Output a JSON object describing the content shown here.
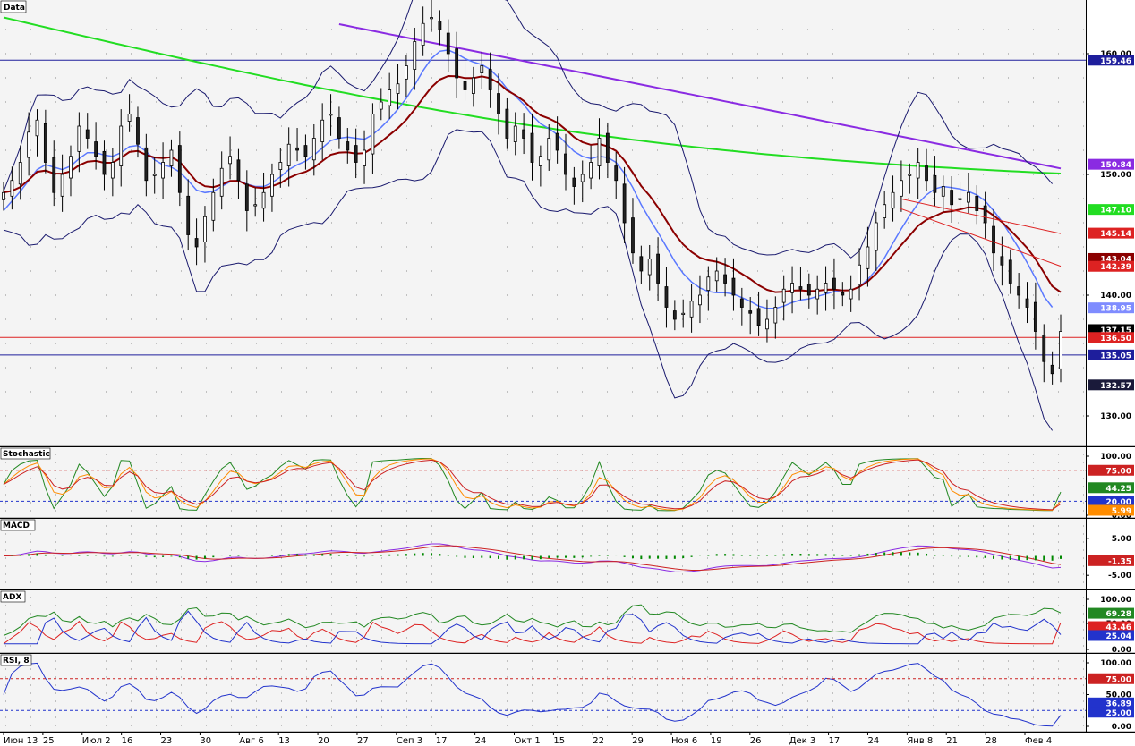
{
  "window": {
    "title": ""
  },
  "colors": {
    "plot_bg": "#f4f4f4",
    "axis_bg": "#ffffff",
    "frame": "#000000",
    "grid_dot": "#8c8c8c",
    "bollinger": "#1a1a6e",
    "sma_fast": "#5a78ff",
    "sma_mid": "#8b0000",
    "sma_slow": "#22dd22",
    "sma_long": "#8a2be2",
    "hline_blue": "#1e1e9c",
    "hline_red": "#d22",
    "stoch_k": "#228822",
    "stoch_d": "#ff8c00",
    "stoch_slow": "#cc2222",
    "macd_line": "#8a2be2",
    "macd_signal": "#cc2222",
    "macd_hist": "#008800",
    "adx": "#228822",
    "di_plus": "#dd2222",
    "di_minus": "#2233cc",
    "rsi": "#2233cc",
    "level_red": "#cc2222",
    "level_blue": "#2233cc"
  },
  "x_axis": {
    "labels": [
      "Июн 13",
      "25",
      "Июл 2",
      "16",
      "23",
      "30",
      "Авг 6",
      "13",
      "20",
      "27",
      "Сеп 3",
      "17",
      "24",
      "Окт 1",
      "15",
      "22",
      "29",
      "Ноя 6",
      "19",
      "26",
      "Дек 3",
      "17",
      "24",
      "Янв 8",
      "21",
      "28",
      "Фев 4"
    ]
  },
  "panels": {
    "price": {
      "title": "Data",
      "ticks": [
        "160.00",
        "150.00",
        "140.00",
        "130.00"
      ],
      "badges": [
        {
          "text": "159.46",
          "bg": "#1e1e9c"
        },
        {
          "text": "150.84",
          "bg": "#8a2be2"
        },
        {
          "text": "147.10",
          "bg": "#22dd22"
        },
        {
          "text": "145.14",
          "bg": "#dd2222"
        },
        {
          "text": "143.04",
          "bg": "#8b0000"
        },
        {
          "text": "142.39",
          "bg": "#dd2222"
        },
        {
          "text": "138.95",
          "bg": "#7f8cff"
        },
        {
          "text": "137.15",
          "bg": "#000000"
        },
        {
          "text": "136.50",
          "bg": "#dd2222"
        },
        {
          "text": "135.05",
          "bg": "#1e1e9c"
        },
        {
          "text": "132.57",
          "bg": "#1a1a3a"
        }
      ]
    },
    "stochastic": {
      "title": "Stochastic",
      "ticks": [
        "100.00",
        "0.00"
      ],
      "badges": [
        {
          "text": "75.00",
          "bg": "#cc2222"
        },
        {
          "text": "44.25",
          "bg": "#228822"
        },
        {
          "text": "20.00",
          "bg": "#2233cc"
        },
        {
          "text": "5.99",
          "bg": "#ff8c00"
        }
      ]
    },
    "macd": {
      "title": "MACD",
      "ticks": [
        "5.00",
        "-5.00"
      ],
      "badges": [
        {
          "text": "-1.35",
          "bg": "#cc2222"
        }
      ]
    },
    "adx": {
      "title": "ADX",
      "ticks": [
        "100.00",
        "50.00",
        "0.00"
      ],
      "badges": [
        {
          "text": "69.28",
          "bg": "#228822"
        },
        {
          "text": "43.46",
          "bg": "#dd2222"
        },
        {
          "text": "25.04",
          "bg": "#2233cc"
        }
      ]
    },
    "rsi": {
      "title": "RSI, 8",
      "ticks": [
        "100.00",
        "50.00",
        "0.00"
      ],
      "badges": [
        {
          "text": "75.00",
          "bg": "#cc2222"
        },
        {
          "text": "36.89",
          "bg": "#2233cc"
        },
        {
          "text": "25.00",
          "bg": "#2233cc"
        }
      ]
    }
  },
  "chart_data": {
    "type": "line",
    "title": "",
    "y_range": [
      128,
      164
    ],
    "horizontal_levels": {
      "blue_top": 159.46,
      "red": 136.5,
      "blue_bottom": 135.05
    },
    "close": [
      148.5,
      149.5,
      151,
      153.5,
      154.5,
      151,
      148.5,
      150,
      151.5,
      154,
      153,
      151.5,
      150,
      151,
      154,
      155,
      152.5,
      149.5,
      150,
      151,
      152,
      148.5,
      145,
      144,
      146.5,
      148.5,
      150.5,
      151.5,
      149.5,
      147,
      147.5,
      148.5,
      150,
      151,
      152.5,
      152,
      151.5,
      153,
      154.5,
      155,
      153,
      152,
      151,
      152,
      155,
      156,
      157,
      157.5,
      159,
      161,
      162.5,
      163,
      162,
      160,
      158,
      157,
      158,
      159,
      157,
      155,
      153,
      154,
      153,
      151,
      151.5,
      153,
      152,
      150,
      149,
      150,
      151,
      153,
      151,
      149.5,
      146,
      143.5,
      142,
      143,
      141,
      139,
      138,
      138.5,
      139.5,
      140,
      141.5,
      142,
      141,
      140,
      139,
      138.5,
      137.5,
      138,
      139,
      140.5,
      141,
      140.5,
      140,
      140.5,
      141,
      140.5,
      140,
      140.5,
      142.5,
      144,
      146,
      147.5,
      148.5,
      149.5,
      150,
      151,
      149.5,
      148.5,
      149,
      147.5,
      148,
      148.5,
      147,
      146,
      143.5,
      142.5,
      141,
      140,
      139,
      137,
      134.5,
      133.5,
      137
    ],
    "sma_fast": [
      147,
      147.8,
      148.6,
      149.5,
      150.4,
      150.8,
      150.6,
      150.4,
      150.7,
      151.3,
      151.8,
      151.8,
      151.6,
      151.5,
      151.8,
      152.3,
      152.4,
      151.9,
      151.2,
      150.8,
      150.6,
      150.2,
      149.5,
      148.7,
      148.5,
      148.6,
      149,
      149.4,
      149.5,
      149.2,
      149,
      149,
      149.3,
      149.8,
      150.4,
      150.8,
      151.1,
      151.6,
      152.2,
      152.8,
      153,
      153.1,
      153,
      152.9,
      153.3,
      153.9,
      154.6,
      155.4,
      156.3,
      157.4,
      158.6,
      159.6,
      160.2,
      160.3,
      160,
      159.6,
      159.3,
      159.1,
      158.7,
      158,
      157.1,
      156.5,
      155.8,
      154.9,
      154.2,
      153.8,
      153.3,
      152.6,
      151.9,
      151.5,
      151.3,
      151.5,
      151.4,
      151,
      150.1,
      148.9,
      147.5,
      146.3,
      145.2,
      144,
      142.8,
      141.8,
      141.1,
      140.6,
      140.3,
      140.2,
      140.2,
      140.1,
      139.8,
      139.5,
      139.1,
      138.9,
      138.9,
      139.1,
      139.4,
      139.6,
      139.7,
      139.9,
      140.1,
      140.3,
      140.4,
      140.4,
      140.7,
      141.3,
      142.1,
      143.1,
      144.3,
      145.5,
      146.6,
      147.6,
      148.3,
      148.8,
      149,
      148.9,
      148.8,
      148.6,
      148.3,
      147.8,
      147,
      146.1,
      145,
      143.9,
      142.7,
      141.4,
      139.9,
      139
    ]
  }
}
